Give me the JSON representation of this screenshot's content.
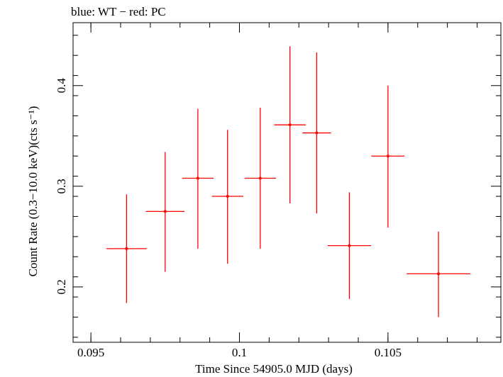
{
  "chart_data": {
    "type": "scatter",
    "title": "blue: WT − red: PC",
    "xlabel": "Time Since 54905.0 MJD (days)",
    "ylabel": "Count Rate (0.3−10.0 keV)(cts s⁻¹)",
    "xlim": [
      0.0944,
      0.1088
    ],
    "ylim": [
      0.145,
      0.4625
    ],
    "x_ticks": [
      0.095,
      0.1,
      0.105
    ],
    "x_tick_labels": [
      "0.095",
      "0.1",
      "0.105"
    ],
    "y_ticks": [
      0.2,
      0.3,
      0.4
    ],
    "y_tick_labels": [
      "0.2",
      "0.3",
      "0.4"
    ],
    "grid": false,
    "series": [
      {
        "color": "#ff0000",
        "points": [
          {
            "x": 0.0962,
            "xerr": 0.00068,
            "y": 0.238,
            "yerr_lo": 0.054,
            "yerr_hi": 0.054
          },
          {
            "x": 0.0975,
            "xerr": 0.00065,
            "y": 0.275,
            "yerr_lo": 0.06,
            "yerr_hi": 0.059
          },
          {
            "x": 0.0986,
            "xerr": 0.00053,
            "y": 0.308,
            "yerr_lo": 0.07,
            "yerr_hi": 0.069
          },
          {
            "x": 0.0996,
            "xerr": 0.00053,
            "y": 0.29,
            "yerr_lo": 0.067,
            "yerr_hi": 0.066
          },
          {
            "x": 0.1007,
            "xerr": 0.00053,
            "y": 0.308,
            "yerr_lo": 0.07,
            "yerr_hi": 0.07
          },
          {
            "x": 0.1017,
            "xerr": 0.00053,
            "y": 0.361,
            "yerr_lo": 0.078,
            "yerr_hi": 0.078
          },
          {
            "x": 0.1026,
            "xerr": 0.00048,
            "y": 0.353,
            "yerr_lo": 0.08,
            "yerr_hi": 0.08
          },
          {
            "x": 0.1037,
            "xerr": 0.00073,
            "y": 0.241,
            "yerr_lo": 0.053,
            "yerr_hi": 0.053
          },
          {
            "x": 0.105,
            "xerr": 0.00056,
            "y": 0.33,
            "yerr_lo": 0.071,
            "yerr_hi": 0.07
          },
          {
            "x": 0.1067,
            "xerr": 0.00107,
            "y": 0.213,
            "yerr_lo": 0.043,
            "yerr_hi": 0.042
          }
        ]
      }
    ]
  }
}
